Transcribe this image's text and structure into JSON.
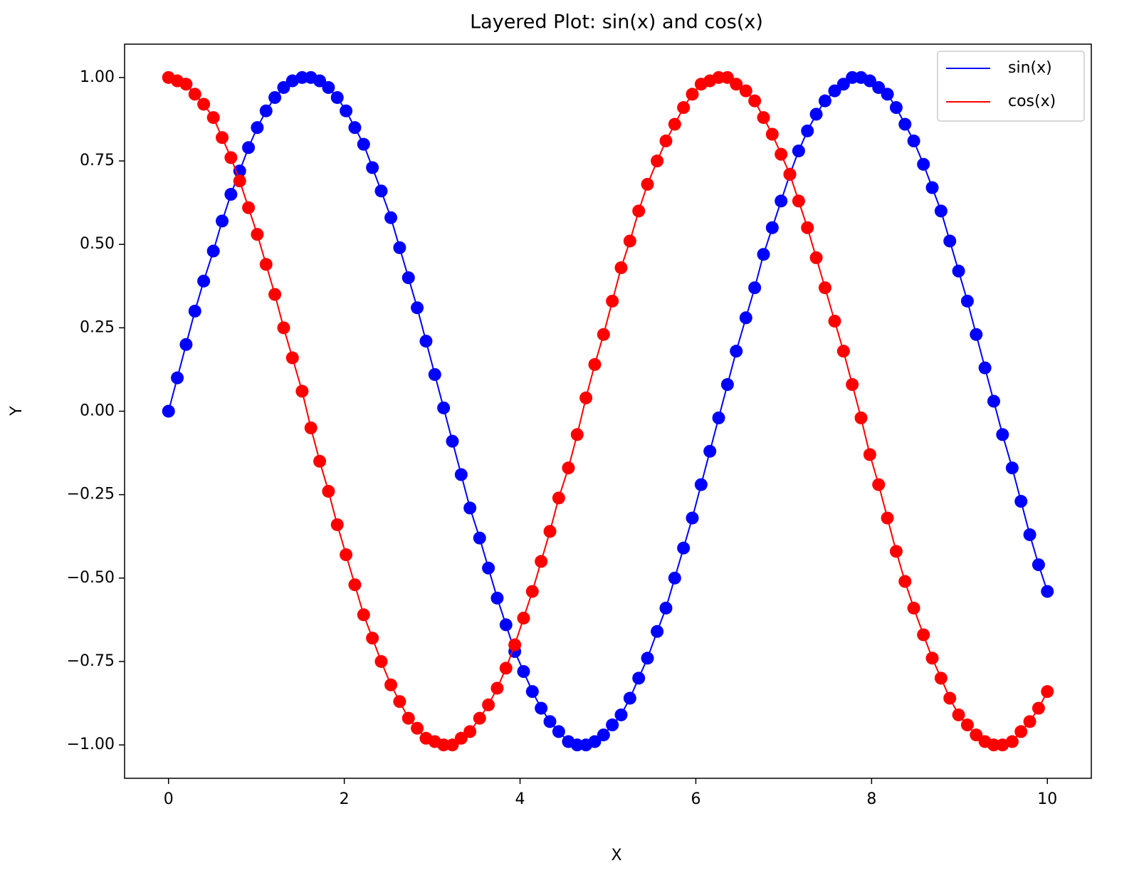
{
  "chart_data": {
    "type": "line",
    "title": "Layered Plot: sin(x) and cos(x)",
    "xlabel": "X",
    "ylabel": "Y",
    "x": [
      0,
      0.1,
      0.2,
      0.3,
      0.4,
      0.51,
      0.61,
      0.71,
      0.81,
      0.91,
      1.01,
      1.11,
      1.21,
      1.31,
      1.41,
      1.52,
      1.62,
      1.72,
      1.82,
      1.92,
      2.02,
      2.12,
      2.22,
      2.32,
      2.42,
      2.53,
      2.63,
      2.73,
      2.83,
      2.93,
      3.03,
      3.13,
      3.23,
      3.33,
      3.43,
      3.54,
      3.64,
      3.74,
      3.84,
      3.94,
      4.04,
      4.14,
      4.24,
      4.34,
      4.44,
      4.55,
      4.65,
      4.75,
      4.85,
      4.95,
      5.05,
      5.15,
      5.25,
      5.35,
      5.45,
      5.56,
      5.66,
      5.76,
      5.86,
      5.96,
      6.06,
      6.16,
      6.26,
      6.36,
      6.46,
      6.57,
      6.67,
      6.77,
      6.87,
      6.97,
      7.07,
      7.17,
      7.27,
      7.37,
      7.47,
      7.58,
      7.68,
      7.78,
      7.88,
      7.98,
      8.08,
      8.18,
      8.28,
      8.38,
      8.48,
      8.59,
      8.69,
      8.79,
      8.89,
      8.99,
      9.09,
      9.19,
      9.29,
      9.39,
      9.49,
      9.6,
      9.7,
      9.8,
      9.9,
      10
    ],
    "series": [
      {
        "name": "sin(x)",
        "color": "#0000ff",
        "values": [
          0,
          0.1,
          0.2,
          0.3,
          0.39,
          0.48,
          0.57,
          0.65,
          0.72,
          0.79,
          0.85,
          0.9,
          0.94,
          0.97,
          0.99,
          1,
          1,
          0.99,
          0.97,
          0.94,
          0.9,
          0.85,
          0.8,
          0.73,
          0.66,
          0.58,
          0.49,
          0.4,
          0.31,
          0.21,
          0.11,
          0.01,
          -0.09,
          -0.19,
          -0.29,
          -0.38,
          -0.47,
          -0.56,
          -0.64,
          -0.72,
          -0.78,
          -0.84,
          -0.89,
          -0.93,
          -0.96,
          -0.99,
          -1,
          -1,
          -0.99,
          -0.97,
          -0.94,
          -0.91,
          -0.86,
          -0.8,
          -0.74,
          -0.66,
          -0.59,
          -0.5,
          -0.41,
          -0.32,
          -0.22,
          -0.12,
          -0.02,
          0.08,
          0.18,
          0.28,
          0.37,
          0.47,
          0.55,
          0.63,
          0.71,
          0.78,
          0.84,
          0.89,
          0.93,
          0.96,
          0.98,
          1,
          1,
          0.99,
          0.97,
          0.95,
          0.91,
          0.86,
          0.81,
          0.74,
          0.67,
          0.6,
          0.51,
          0.42,
          0.33,
          0.23,
          0.13,
          0.03,
          -0.07,
          -0.17,
          -0.27,
          -0.37,
          -0.46,
          -0.54
        ]
      },
      {
        "name": "cos(x)",
        "color": "#ff0000",
        "values": [
          1,
          0.99,
          0.98,
          0.95,
          0.92,
          0.88,
          0.82,
          0.76,
          0.69,
          0.61,
          0.53,
          0.44,
          0.35,
          0.25,
          0.16,
          0.06,
          -0.05,
          -0.15,
          -0.24,
          -0.34,
          -0.43,
          -0.52,
          -0.61,
          -0.68,
          -0.75,
          -0.82,
          -0.87,
          -0.92,
          -0.95,
          -0.98,
          -0.99,
          -1,
          -1,
          -0.98,
          -0.96,
          -0.92,
          -0.88,
          -0.83,
          -0.77,
          -0.7,
          -0.62,
          -0.54,
          -0.45,
          -0.36,
          -0.26,
          -0.17,
          -0.07,
          0.04,
          0.14,
          0.23,
          0.33,
          0.43,
          0.51,
          0.6,
          0.68,
          0.75,
          0.81,
          0.86,
          0.91,
          0.95,
          0.98,
          0.99,
          1,
          1,
          0.98,
          0.96,
          0.93,
          0.88,
          0.83,
          0.77,
          0.71,
          0.63,
          0.55,
          0.46,
          0.37,
          0.27,
          0.18,
          0.08,
          -0.02,
          -0.13,
          -0.22,
          -0.32,
          -0.42,
          -0.51,
          -0.59,
          -0.67,
          -0.74,
          -0.8,
          -0.86,
          -0.91,
          -0.94,
          -0.97,
          -0.99,
          -1,
          -1,
          -0.99,
          -0.96,
          -0.93,
          -0.89,
          -0.84
        ]
      }
    ],
    "xlim": [
      -0.5,
      10.5
    ],
    "xticks": [
      0,
      2,
      4,
      6,
      8,
      10
    ],
    "ylim": [
      -1.1,
      1.1
    ],
    "yticks": [
      {
        "value": -1,
        "label": "−1.00"
      },
      {
        "value": -0.75,
        "label": "−0.75"
      },
      {
        "value": -0.5,
        "label": "−0.50"
      },
      {
        "value": -0.25,
        "label": "−0.25"
      },
      {
        "value": 0,
        "label": "0.00"
      },
      {
        "value": 0.25,
        "label": "0.25"
      },
      {
        "value": 0.5,
        "label": "0.50"
      },
      {
        "value": 0.75,
        "label": "0.75"
      },
      {
        "value": 1,
        "label": "1.00"
      }
    ],
    "grid": false,
    "legend": "upper right"
  }
}
